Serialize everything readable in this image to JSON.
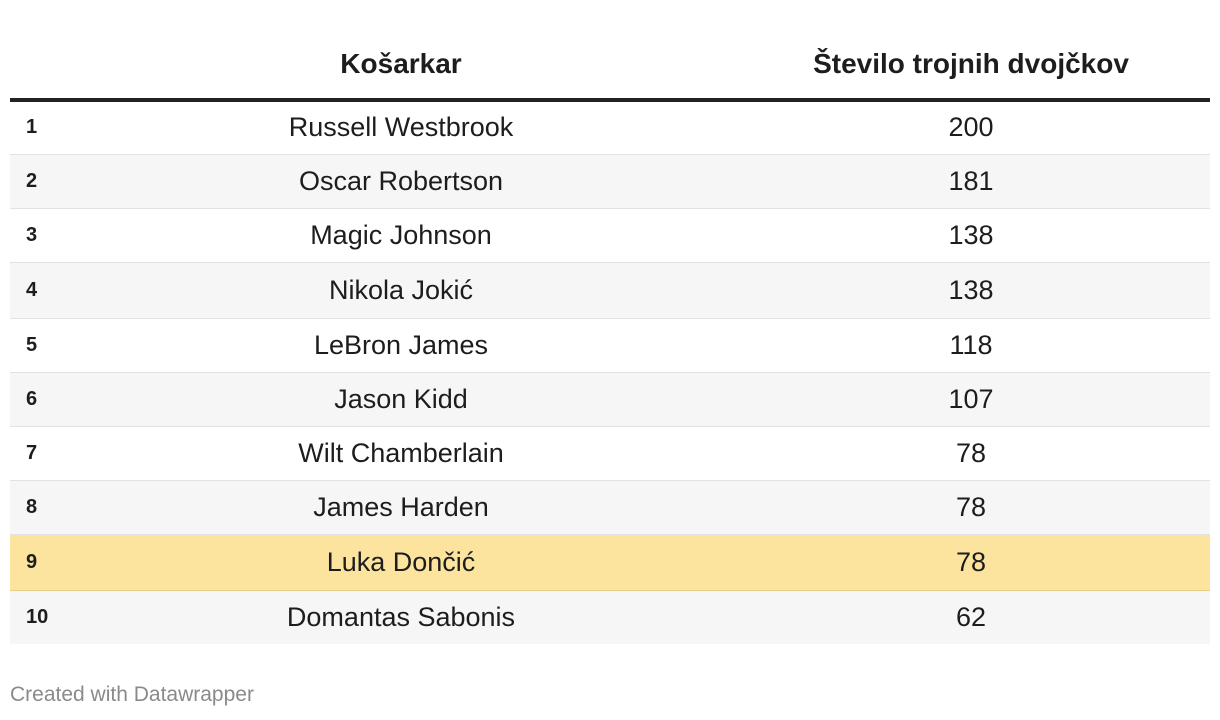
{
  "chart_data": {
    "type": "table",
    "columns": [
      "",
      "Košarkar",
      "Število trojnih dvojčkov"
    ],
    "rows": [
      {
        "rank": "1",
        "player": "Russell Westbrook",
        "count": 200
      },
      {
        "rank": "2",
        "player": "Oscar Robertson",
        "count": 181
      },
      {
        "rank": "3",
        "player": "Magic Johnson",
        "count": 138
      },
      {
        "rank": "4",
        "player": "Nikola Jokić",
        "count": 138
      },
      {
        "rank": "5",
        "player": "LeBron James",
        "count": 118
      },
      {
        "rank": "6",
        "player": "Jason Kidd",
        "count": 107
      },
      {
        "rank": "7",
        "player": "Wilt Chamberlain",
        "count": 78
      },
      {
        "rank": "8",
        "player": "James Harden",
        "count": 78
      },
      {
        "rank": "9",
        "player": "Luka Dončić",
        "count": 78
      },
      {
        "rank": "10",
        "player": "Domantas Sabonis",
        "count": 62
      }
    ],
    "highlighted_row": "9",
    "highlight_color": "#fce49e",
    "stripe_color": "#f6f6f6",
    "header_rule_color": "#222222"
  },
  "footer": {
    "credit": "Created with Datawrapper"
  }
}
